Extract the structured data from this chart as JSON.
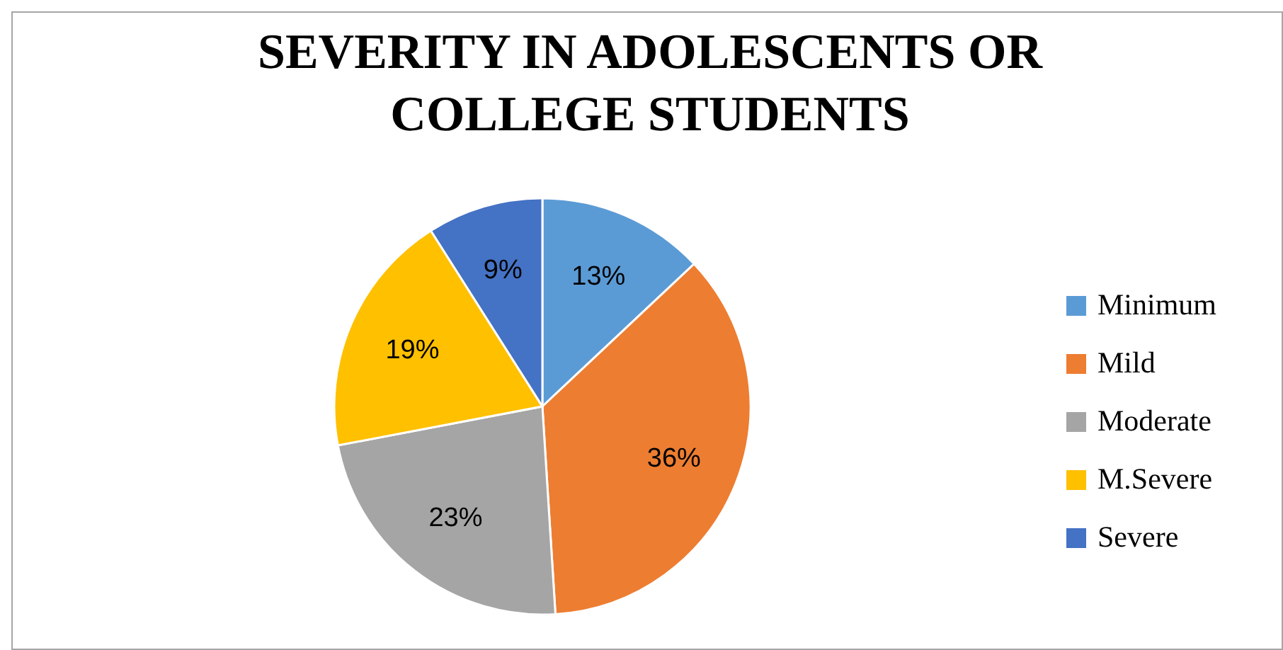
{
  "chart_data": {
    "type": "pie",
    "title": "SEVERITY IN ADOLESCENTS OR COLLEGE STUDENTS",
    "categories": [
      "Minimum",
      "Mild",
      "Moderate",
      "M.Severe",
      "Severe"
    ],
    "values": [
      13,
      36,
      23,
      19,
      9
    ],
    "colors": [
      "#5b9bd5",
      "#ed7d31",
      "#a5a5a5",
      "#ffc000",
      "#4472c4"
    ],
    "value_labels": [
      "13%",
      "36%",
      "23%",
      "19%",
      "9%"
    ],
    "legend": "right"
  }
}
